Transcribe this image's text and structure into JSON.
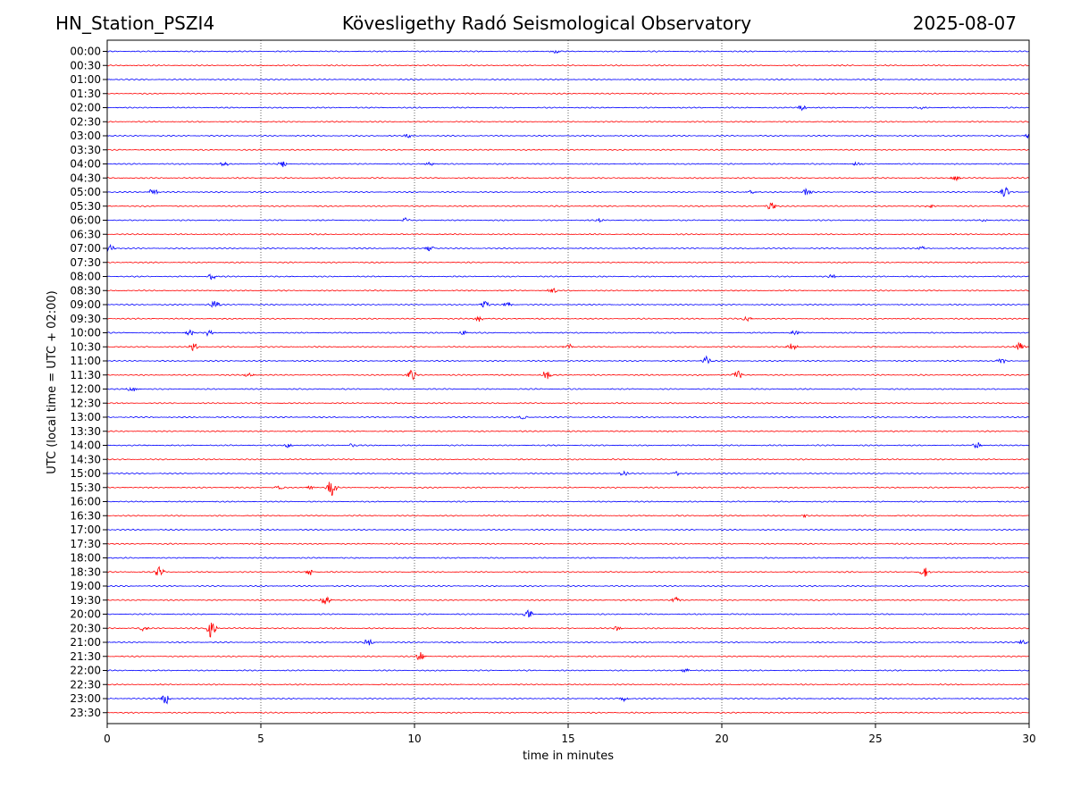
{
  "header": {
    "station": "HN_Station_PSZI4",
    "observatory": "Kövesligethy Radó Seismological Observatory",
    "date": "2025-08-07"
  },
  "chart_data": {
    "type": "line",
    "title": "Kövesligethy Radó Seismological Observatory",
    "xlabel": "time in minutes",
    "ylabel": "UTC (local time = UTC + 02:00)",
    "xlim": [
      0,
      30
    ],
    "xticks": [
      0,
      5,
      10,
      15,
      20,
      25,
      30
    ],
    "grid": "vertical dotted at 5-minute ticks",
    "colors": {
      "odd_rows": "#0000ff",
      "even_rows": "#ff0000",
      "grid": "#000000"
    },
    "rows": [
      "00:00",
      "00:30",
      "01:00",
      "01:30",
      "02:00",
      "02:30",
      "03:00",
      "03:30",
      "04:00",
      "04:30",
      "05:00",
      "05:30",
      "06:00",
      "06:30",
      "07:00",
      "07:30",
      "08:00",
      "08:30",
      "09:00",
      "09:30",
      "10:00",
      "10:30",
      "11:00",
      "11:30",
      "12:00",
      "12:30",
      "13:00",
      "13:30",
      "14:00",
      "14:30",
      "15:00",
      "15:30",
      "16:00",
      "16:30",
      "17:00",
      "17:30",
      "18:00",
      "18:30",
      "19:00",
      "19:30",
      "20:00",
      "20:30",
      "21:00",
      "21:30",
      "22:00",
      "22:30",
      "23:00",
      "23:30"
    ],
    "events": {
      "00:00": [
        [
          14.6,
          0.4
        ]
      ],
      "02:00": [
        [
          22.6,
          0.5
        ],
        [
          26.5,
          0.4
        ]
      ],
      "03:00": [
        [
          9.8,
          0.4
        ],
        [
          30,
          0.5
        ]
      ],
      "04:00": [
        [
          3.8,
          0.4
        ],
        [
          5.7,
          0.6
        ],
        [
          10.5,
          0.4
        ],
        [
          24.4,
          0.4
        ]
      ],
      "04:30": [
        [
          27.6,
          0.6
        ]
      ],
      "05:00": [
        [
          1.5,
          0.7
        ],
        [
          21,
          0.5
        ],
        [
          22.8,
          0.8
        ],
        [
          29.2,
          0.9
        ]
      ],
      "05:30": [
        [
          21.6,
          0.8
        ],
        [
          26.8,
          0.4
        ]
      ],
      "06:00": [
        [
          9.7,
          0.5
        ],
        [
          16,
          0.4
        ],
        [
          28.5,
          0.4
        ]
      ],
      "07:00": [
        [
          0.1,
          0.6
        ],
        [
          10.5,
          0.5
        ],
        [
          26.5,
          0.4
        ]
      ],
      "08:00": [
        [
          3.4,
          0.5
        ],
        [
          23.6,
          0.4
        ]
      ],
      "08:30": [
        [
          14.5,
          0.5
        ]
      ],
      "09:00": [
        [
          3.5,
          0.7
        ],
        [
          12.3,
          0.8
        ],
        [
          13,
          0.5
        ]
      ],
      "09:30": [
        [
          12.1,
          0.6
        ],
        [
          20.8,
          0.4
        ]
      ],
      "10:00": [
        [
          2.7,
          0.5
        ],
        [
          3.3,
          0.5
        ],
        [
          11.6,
          0.5
        ],
        [
          22.4,
          0.4
        ]
      ],
      "10:30": [
        [
          2.8,
          0.8
        ],
        [
          15,
          0.7
        ],
        [
          22.3,
          0.8
        ],
        [
          29.7,
          0.8
        ]
      ],
      "11:00": [
        [
          19.5,
          0.8
        ],
        [
          29.1,
          0.6
        ]
      ],
      "11:30": [
        [
          9.9,
          1.2
        ],
        [
          14.3,
          0.9
        ],
        [
          20.5,
          1.0
        ],
        [
          4.6,
          0.4
        ]
      ],
      "12:00": [
        [
          0.8,
          0.6
        ]
      ],
      "13:00": [
        [
          13.5,
          0.5
        ]
      ],
      "14:00": [
        [
          5.9,
          0.4
        ],
        [
          8,
          0.4
        ],
        [
          28.3,
          0.6
        ]
      ],
      "15:00": [
        [
          16.8,
          0.5
        ],
        [
          18.5,
          0.4
        ]
      ],
      "15:30": [
        [
          7.3,
          1.6
        ],
        [
          5.6,
          0.4
        ],
        [
          6.6,
          0.4
        ]
      ],
      "16:30": [
        [
          22.7,
          0.3
        ]
      ],
      "18:30": [
        [
          1.7,
          0.9
        ],
        [
          6.6,
          0.6
        ],
        [
          26.6,
          0.9
        ]
      ],
      "19:30": [
        [
          7.1,
          0.9
        ],
        [
          18.5,
          0.5
        ]
      ],
      "20:00": [
        [
          13.7,
          0.9
        ]
      ],
      "20:30": [
        [
          1.2,
          0.6
        ],
        [
          3.4,
          1.9
        ],
        [
          16.6,
          0.4
        ]
      ],
      "21:00": [
        [
          8.5,
          0.6
        ],
        [
          29.8,
          0.5
        ]
      ],
      "21:30": [
        [
          10.2,
          0.9
        ]
      ],
      "22:00": [
        [
          18.8,
          0.4
        ]
      ],
      "23:00": [
        [
          1.9,
          1.0
        ],
        [
          16.8,
          0.5
        ]
      ]
    }
  }
}
